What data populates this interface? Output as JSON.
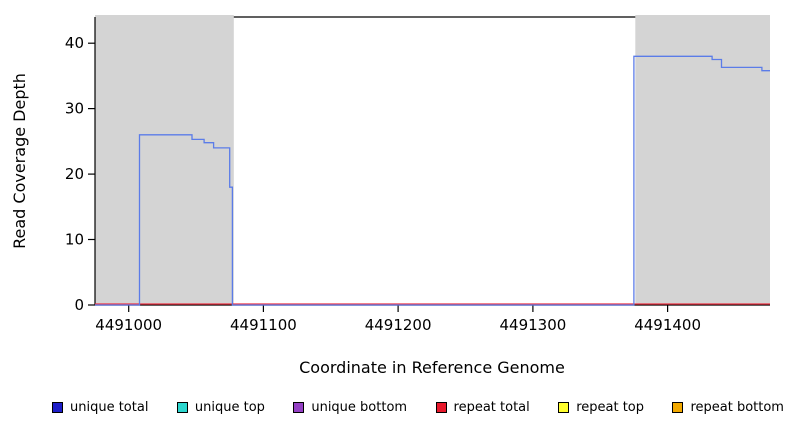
{
  "chart_data": {
    "type": "line",
    "title": "",
    "xlabel": "Coordinate in Reference Genome",
    "ylabel": "Read Coverage Depth",
    "xlim": [
      4490975,
      4491476
    ],
    "ylim": [
      0,
      44
    ],
    "x_tick_values": [
      4491000,
      4491100,
      4491200,
      4491300,
      4491400
    ],
    "x_ticks": [
      "4491000",
      "4491100",
      "4491200",
      "4491300",
      "4491400"
    ],
    "y_tick_values": [
      0,
      10,
      20,
      30,
      40
    ],
    "y_ticks": [
      "0",
      "10",
      "20",
      "30",
      "40"
    ],
    "grid": false,
    "repeat_region_color": "#D4D4D4",
    "repeat_regions": [
      {
        "start": 4490975,
        "end": 4491078
      },
      {
        "start": 4491376,
        "end": 4491476
      }
    ],
    "series": [
      {
        "name": "repeat total",
        "color": "#EE3344",
        "step_points": [
          [
            4490975,
            0
          ],
          [
            4491476,
            0
          ]
        ]
      },
      {
        "name": "unique total",
        "color": "#5B7CE8",
        "step_points": [
          [
            4490975,
            0
          ],
          [
            4491008,
            0
          ],
          [
            4491008,
            26
          ],
          [
            4491047,
            26
          ],
          [
            4491047,
            25.3
          ],
          [
            4491056,
            25.3
          ],
          [
            4491056,
            24.8
          ],
          [
            4491063,
            24.8
          ],
          [
            4491063,
            24
          ],
          [
            4491075,
            24
          ],
          [
            4491075,
            18
          ],
          [
            4491077,
            18
          ],
          [
            4491077,
            0
          ],
          [
            4491375,
            0
          ],
          [
            4491375,
            38
          ],
          [
            4491433,
            38
          ],
          [
            4491433,
            37.5
          ],
          [
            4491440,
            37.5
          ],
          [
            4491440,
            36.3
          ],
          [
            4491470,
            36.3
          ],
          [
            4491470,
            35.8
          ],
          [
            4491476,
            35.8
          ]
        ]
      }
    ]
  },
  "legend": {
    "items": [
      {
        "label": "unique total",
        "color": "#1E1EC8"
      },
      {
        "label": "unique top",
        "color": "#2BD6CE"
      },
      {
        "label": "unique bottom",
        "color": "#9440C4"
      },
      {
        "label": "repeat total",
        "color": "#E8192C"
      },
      {
        "label": "repeat top",
        "color": "#FFFF2E"
      },
      {
        "label": "repeat bottom",
        "color": "#F2A900"
      }
    ]
  }
}
